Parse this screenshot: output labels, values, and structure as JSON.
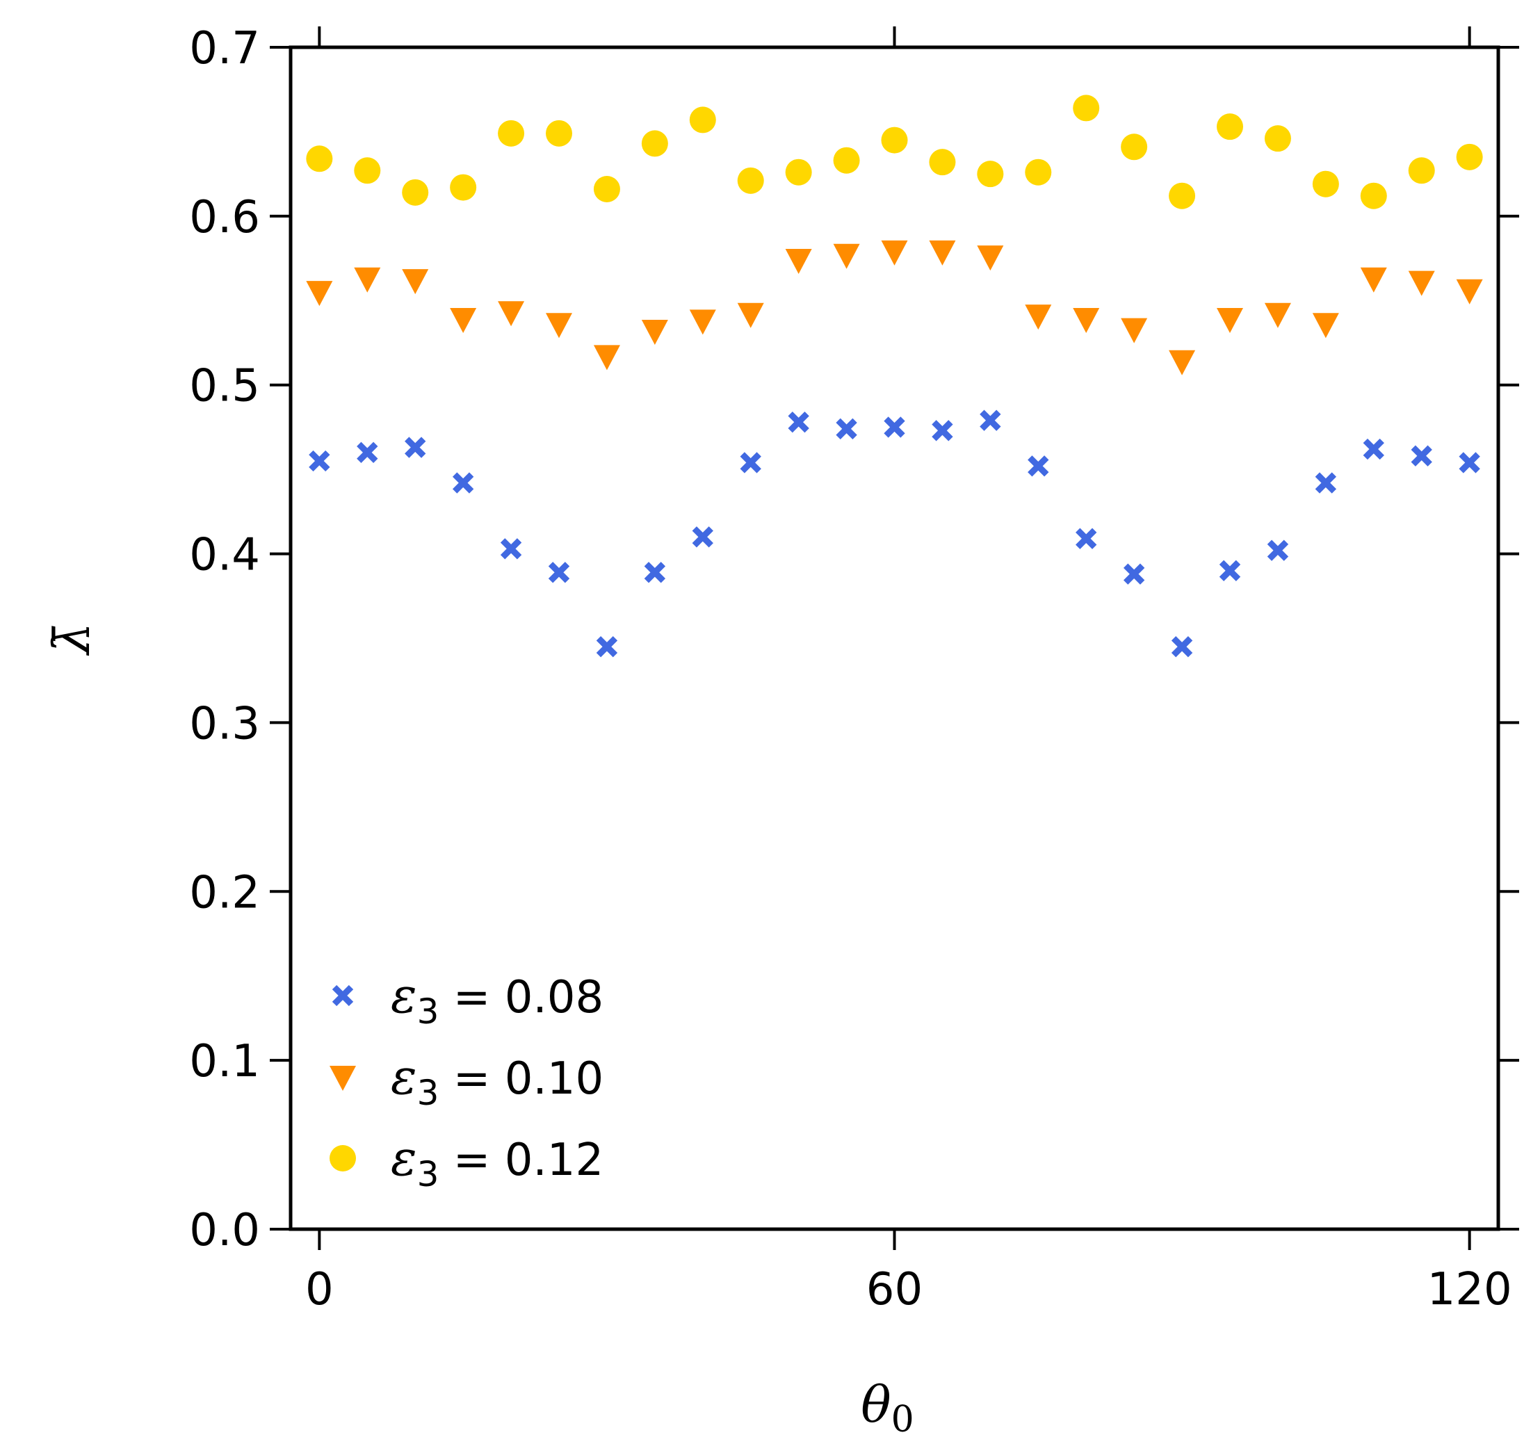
{
  "chart_data": {
    "type": "scatter",
    "title": "",
    "xlabel": "θ",
    "xlabel_sub": "0",
    "ylabel": "λ̄",
    "xlim": [
      -3,
      123
    ],
    "ylim": [
      0.0,
      0.7
    ],
    "xticks": [
      0,
      60,
      120
    ],
    "xtick_labels": [
      "0",
      "60",
      "120"
    ],
    "yticks": [
      0.0,
      0.1,
      0.2,
      0.3,
      0.4,
      0.5,
      0.6,
      0.7
    ],
    "ytick_labels": [
      "0.0",
      "0.1",
      "0.2",
      "0.3",
      "0.4",
      "0.5",
      "0.6",
      "0.7"
    ],
    "grid": false,
    "legend_position": "bottom-left",
    "x": [
      0,
      5,
      10,
      15,
      20,
      25,
      30,
      35,
      40,
      45,
      50,
      55,
      60,
      65,
      70,
      75,
      80,
      85,
      90,
      95,
      100,
      105,
      110,
      115,
      120
    ],
    "series": [
      {
        "name": "ε3 = 0.08",
        "legend_eps": "ε",
        "legend_sub": "3",
        "legend_rest": " = 0.08",
        "marker": "x",
        "color": "#4169E1",
        "values": [
          0.455,
          0.46,
          0.463,
          0.442,
          0.403,
          0.389,
          0.345,
          0.389,
          0.41,
          0.454,
          0.478,
          0.474,
          0.475,
          0.473,
          0.479,
          0.452,
          0.409,
          0.388,
          0.345,
          0.39,
          0.402,
          0.442,
          0.462,
          0.458,
          0.454
        ]
      },
      {
        "name": "ε3 = 0.10",
        "legend_eps": "ε",
        "legend_sub": "3",
        "legend_rest": " = 0.10",
        "marker": "triangle-down",
        "color": "#FF8C00",
        "values": [
          0.555,
          0.563,
          0.562,
          0.539,
          0.543,
          0.536,
          0.517,
          0.532,
          0.538,
          0.542,
          0.574,
          0.577,
          0.579,
          0.579,
          0.576,
          0.541,
          0.539,
          0.533,
          0.514,
          0.539,
          0.542,
          0.536,
          0.563,
          0.561,
          0.556
        ]
      },
      {
        "name": "ε3 = 0.12",
        "legend_eps": "ε",
        "legend_sub": "3",
        "legend_rest": " = 0.12",
        "marker": "circle",
        "color": "#FFD700",
        "values": [
          0.634,
          0.627,
          0.614,
          0.617,
          0.649,
          0.649,
          0.616,
          0.643,
          0.657,
          0.621,
          0.626,
          0.633,
          0.645,
          0.632,
          0.625,
          0.626,
          0.664,
          0.641,
          0.612,
          0.653,
          0.646,
          0.619,
          0.612,
          0.627,
          0.635
        ]
      }
    ]
  }
}
